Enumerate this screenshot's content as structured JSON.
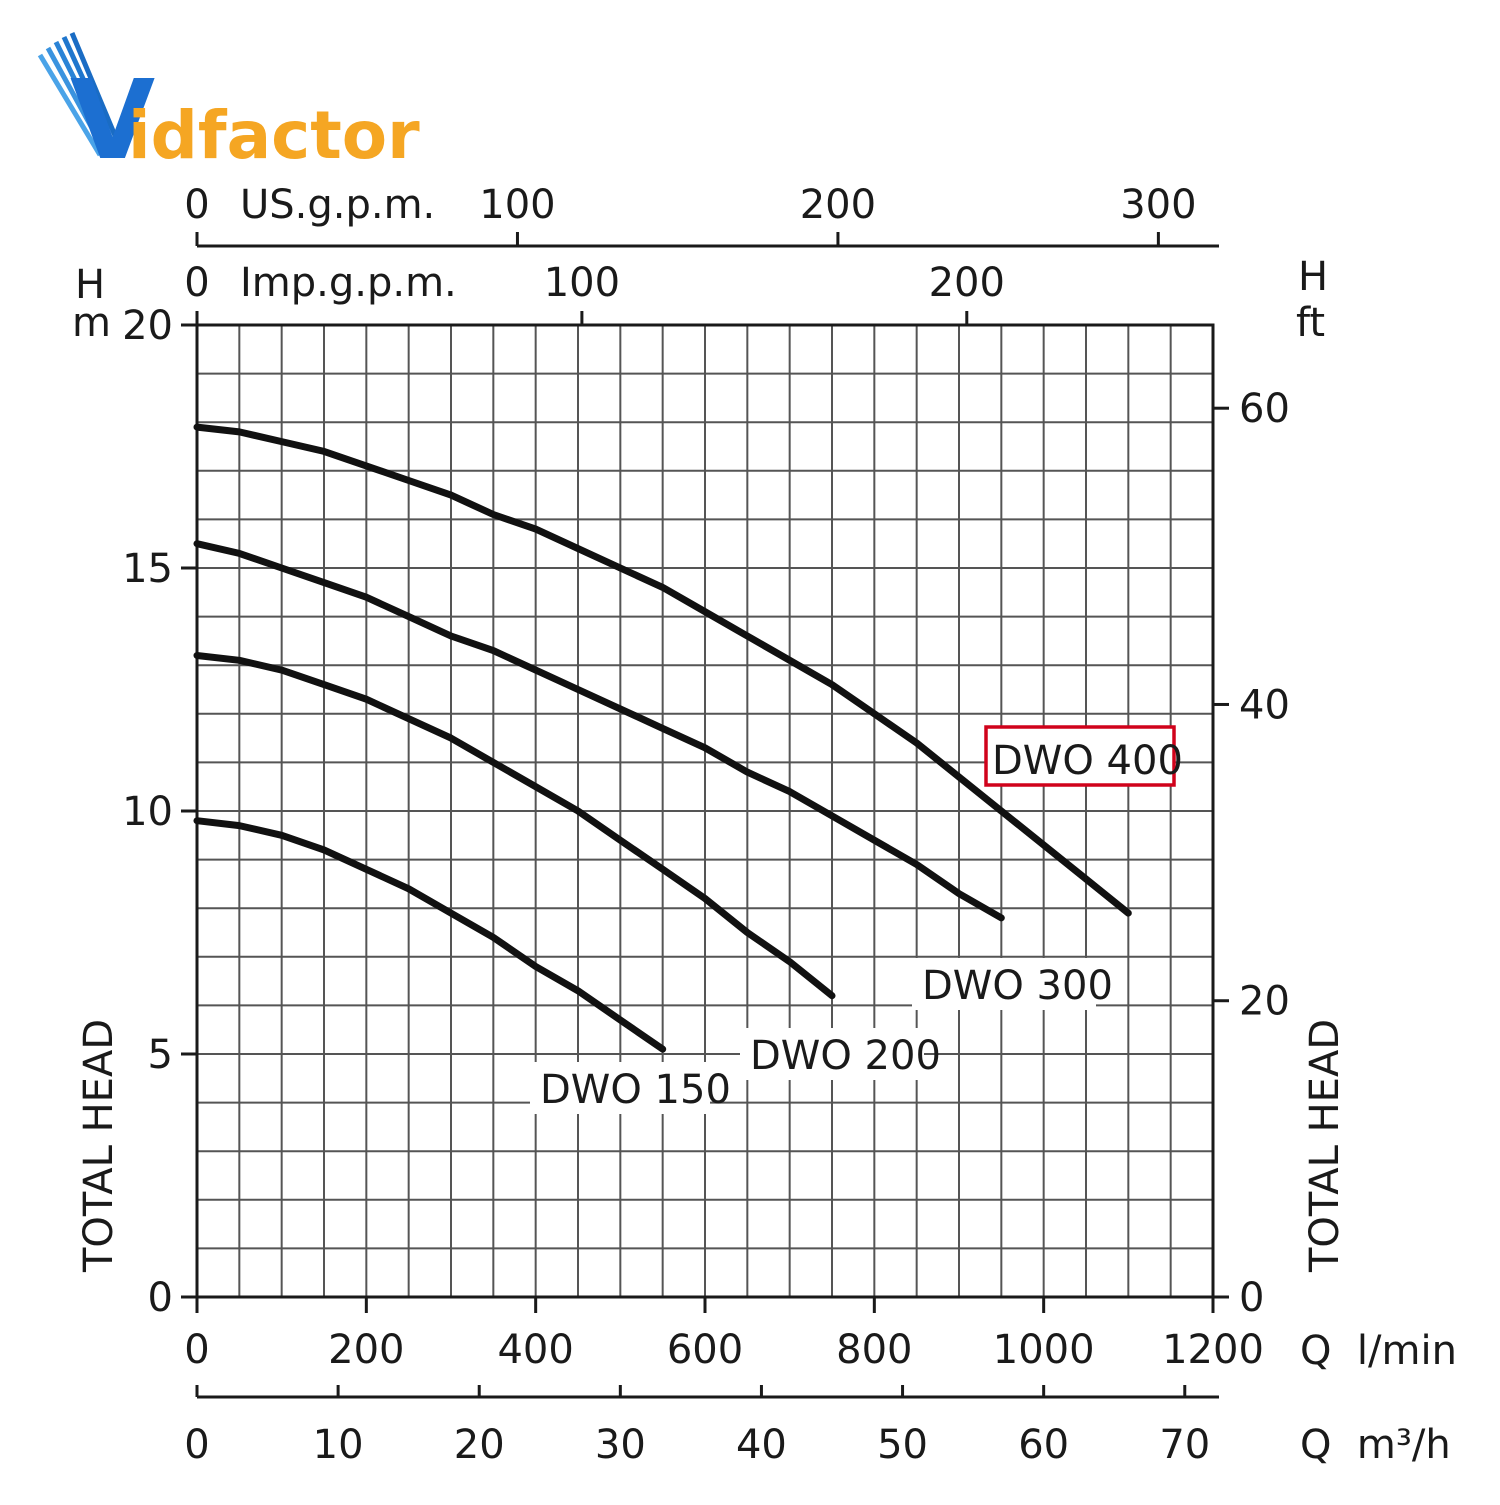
{
  "logo": {
    "text_prefix": "V",
    "text_rest": "idfactor",
    "color_blue": "#1c6fd1",
    "color_orange": "#f5a623"
  },
  "axes": {
    "left_unit_h": "H",
    "left_unit_m": "m",
    "right_unit_h": "H",
    "right_unit_ft": "ft",
    "left_title": "TOTAL HEAD",
    "right_title": "TOTAL HEAD",
    "bottom_unit_lmin": "Q  l/min",
    "bottom_unit_m3h": "Q  m³/h",
    "top_unit_us": "US.g.p.m.",
    "top_unit_imp": "Imp.g.p.m."
  },
  "highlight_color": "#d0021b",
  "chart_data": {
    "type": "line",
    "title": "",
    "xlabel": "Q l/min",
    "ylabel": "TOTAL HEAD (m)",
    "xlim": [
      0,
      1200
    ],
    "ylim": [
      0,
      20
    ],
    "grid": true,
    "axes": {
      "x_lmin_ticks": [
        "0",
        "200",
        "400",
        "600",
        "800",
        "1000",
        "1200"
      ],
      "x_m3h_ticks": [
        "0",
        "10",
        "20",
        "30",
        "40",
        "50",
        "60",
        "70"
      ],
      "x_usgpm_ticks": [
        "0",
        "100",
        "200",
        "300"
      ],
      "x_impgpm_ticks": [
        "0",
        "100",
        "200"
      ],
      "y_m_ticks": [
        "0",
        "5",
        "10",
        "15",
        "20"
      ],
      "y_ft_ticks": [
        "0",
        "20",
        "40",
        "60"
      ]
    },
    "series": [
      {
        "name": "DWO 150",
        "x": [
          0,
          50,
          100,
          150,
          200,
          250,
          300,
          350,
          400,
          450,
          500,
          550
        ],
        "y": [
          9.8,
          9.7,
          9.5,
          9.2,
          8.8,
          8.4,
          7.9,
          7.4,
          6.8,
          6.3,
          5.7,
          5.1
        ]
      },
      {
        "name": "DWO 200",
        "x": [
          0,
          50,
          100,
          150,
          200,
          250,
          300,
          350,
          400,
          450,
          500,
          550,
          600,
          650,
          700,
          750
        ],
        "y": [
          13.2,
          13.1,
          12.9,
          12.6,
          12.3,
          11.9,
          11.5,
          11.0,
          10.5,
          10.0,
          9.4,
          8.8,
          8.2,
          7.5,
          6.9,
          6.2
        ]
      },
      {
        "name": "DWO 300",
        "x": [
          0,
          50,
          100,
          150,
          200,
          250,
          300,
          350,
          400,
          450,
          500,
          550,
          600,
          650,
          700,
          750,
          800,
          850,
          900,
          950
        ],
        "y": [
          15.5,
          15.3,
          15.0,
          14.7,
          14.4,
          14.0,
          13.6,
          13.3,
          12.9,
          12.5,
          12.1,
          11.7,
          11.3,
          10.8,
          10.4,
          9.9,
          9.4,
          8.9,
          8.3,
          7.8
        ]
      },
      {
        "name": "DWO 400",
        "x": [
          0,
          50,
          100,
          150,
          200,
          250,
          300,
          350,
          400,
          450,
          500,
          550,
          600,
          650,
          700,
          750,
          800,
          850,
          900,
          950,
          1000,
          1050,
          1100
        ],
        "y": [
          17.9,
          17.8,
          17.6,
          17.4,
          17.1,
          16.8,
          16.5,
          16.1,
          15.8,
          15.4,
          15.0,
          14.6,
          14.1,
          13.6,
          13.1,
          12.6,
          12.0,
          11.4,
          10.7,
          10.0,
          9.3,
          8.6,
          7.9
        ]
      }
    ],
    "annotations": [
      "DWO 150",
      "DWO 200",
      "DWO 300",
      "DWO 400"
    ],
    "highlighted_series": "DWO 400"
  }
}
